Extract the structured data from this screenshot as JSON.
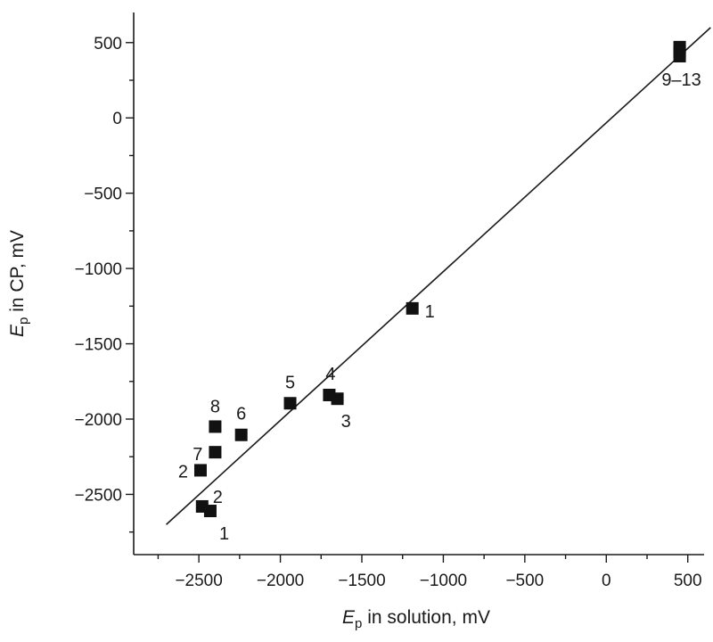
{
  "chart_data": {
    "type": "scatter",
    "title": "",
    "xlabel": {
      "symbol": "E",
      "subscript": "p",
      "text": " in solution, mV"
    },
    "ylabel": {
      "symbol": "E",
      "subscript": "p",
      "text": " in CP, mV"
    },
    "xlim": [
      -2900,
      600
    ],
    "ylim": [
      -2900,
      700
    ],
    "x_ticks": [
      -2500,
      -2000,
      -1500,
      -1000,
      -500,
      0,
      500
    ],
    "y_ticks": [
      -2500,
      -2000,
      -1500,
      -1000,
      -500,
      0,
      500
    ],
    "x_tick_labels": [
      "−2500",
      "−2000",
      "−1500",
      "−1000",
      "−500",
      "0",
      "500"
    ],
    "y_tick_labels": [
      "−2500",
      "−2000",
      "−1500",
      "−1000",
      "−500",
      "0",
      "500"
    ],
    "grid": false,
    "points": [
      {
        "x": 450,
        "y": 470,
        "label": ""
      },
      {
        "x": 450,
        "y": 440,
        "label": ""
      },
      {
        "x": 450,
        "y": 410,
        "label": "9–13"
      },
      {
        "x": -1190,
        "y": -1265,
        "label": "1"
      },
      {
        "x": -1940,
        "y": -1895,
        "label": "5"
      },
      {
        "x": -1700,
        "y": -1840,
        "label": "4"
      },
      {
        "x": -1650,
        "y": -1865,
        "label": "3"
      },
      {
        "x": -2240,
        "y": -2105,
        "label": "6"
      },
      {
        "x": -2400,
        "y": -2050,
        "label": "8"
      },
      {
        "x": -2400,
        "y": -2220,
        "label": "7"
      },
      {
        "x": -2490,
        "y": -2340,
        "label": "2"
      },
      {
        "x": -2480,
        "y": -2580,
        "label": "2"
      },
      {
        "x": -2430,
        "y": -2610,
        "label": "1"
      }
    ],
    "fit_line": {
      "x": [
        -2700,
        640
      ],
      "y": [
        -2700,
        600
      ]
    }
  }
}
